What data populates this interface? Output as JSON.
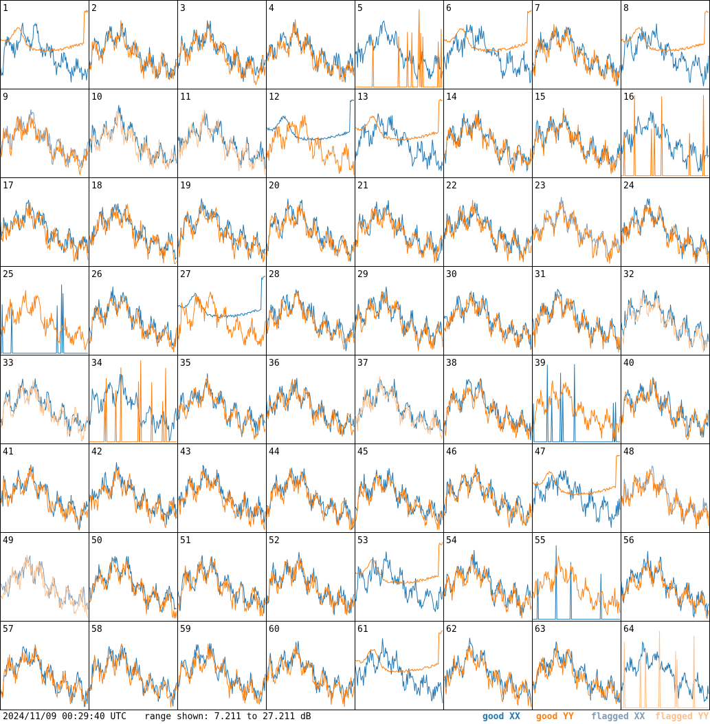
{
  "chart_data": {
    "type": "line",
    "layout": "8x8 small multiples",
    "panel_labels": [
      "1",
      "2",
      "3",
      "4",
      "5",
      "6",
      "7",
      "8",
      "9",
      "10",
      "11",
      "12",
      "13",
      "14",
      "15",
      "16",
      "17",
      "18",
      "19",
      "20",
      "21",
      "22",
      "23",
      "24",
      "25",
      "26",
      "27",
      "28",
      "29",
      "30",
      "31",
      "32",
      "33",
      "34",
      "35",
      "36",
      "37",
      "38",
      "39",
      "40",
      "41",
      "42",
      "43",
      "44",
      "45",
      "46",
      "47",
      "48",
      "49",
      "50",
      "51",
      "52",
      "53",
      "54",
      "55",
      "56",
      "57",
      "58",
      "59",
      "60",
      "61",
      "62",
      "63",
      "64"
    ],
    "ylim": [
      7.211,
      27.211
    ],
    "yunit": "dB",
    "series_legend": [
      {
        "name": "good XX",
        "color": "#1f77b4"
      },
      {
        "name": "good YY",
        "color": "#ff7f0e"
      },
      {
        "name": "flagged XX",
        "color": "#7f9bb8"
      },
      {
        "name": "flagged YY",
        "color": "#ffbf8a"
      }
    ],
    "panel_status": {
      "flagged_xx": [
        "9",
        "23",
        "48",
        "49"
      ],
      "flagged_yy": [
        "10",
        "11",
        "32",
        "33",
        "37",
        "49"
      ],
      "spike_xx": [
        "25",
        "39",
        "55"
      ],
      "spike_yy": [
        "5",
        "16",
        "64",
        "34"
      ],
      "flat_yy": [
        "1",
        "6",
        "8",
        "13",
        "47",
        "53",
        "61"
      ],
      "flat_xx": [
        "12",
        "27"
      ],
      "missing_yy": [
        "64"
      ]
    },
    "timestamp": "2024/11/09 00:29:40 UTC",
    "range_text": "range shown: 7.211 to 27.211 dB"
  },
  "colors": {
    "good_xx": "#1f77b4",
    "good_yy": "#ff7f0e",
    "flagged_xx": "#7f9bb8",
    "flagged_yy": "#ffbf8a"
  }
}
